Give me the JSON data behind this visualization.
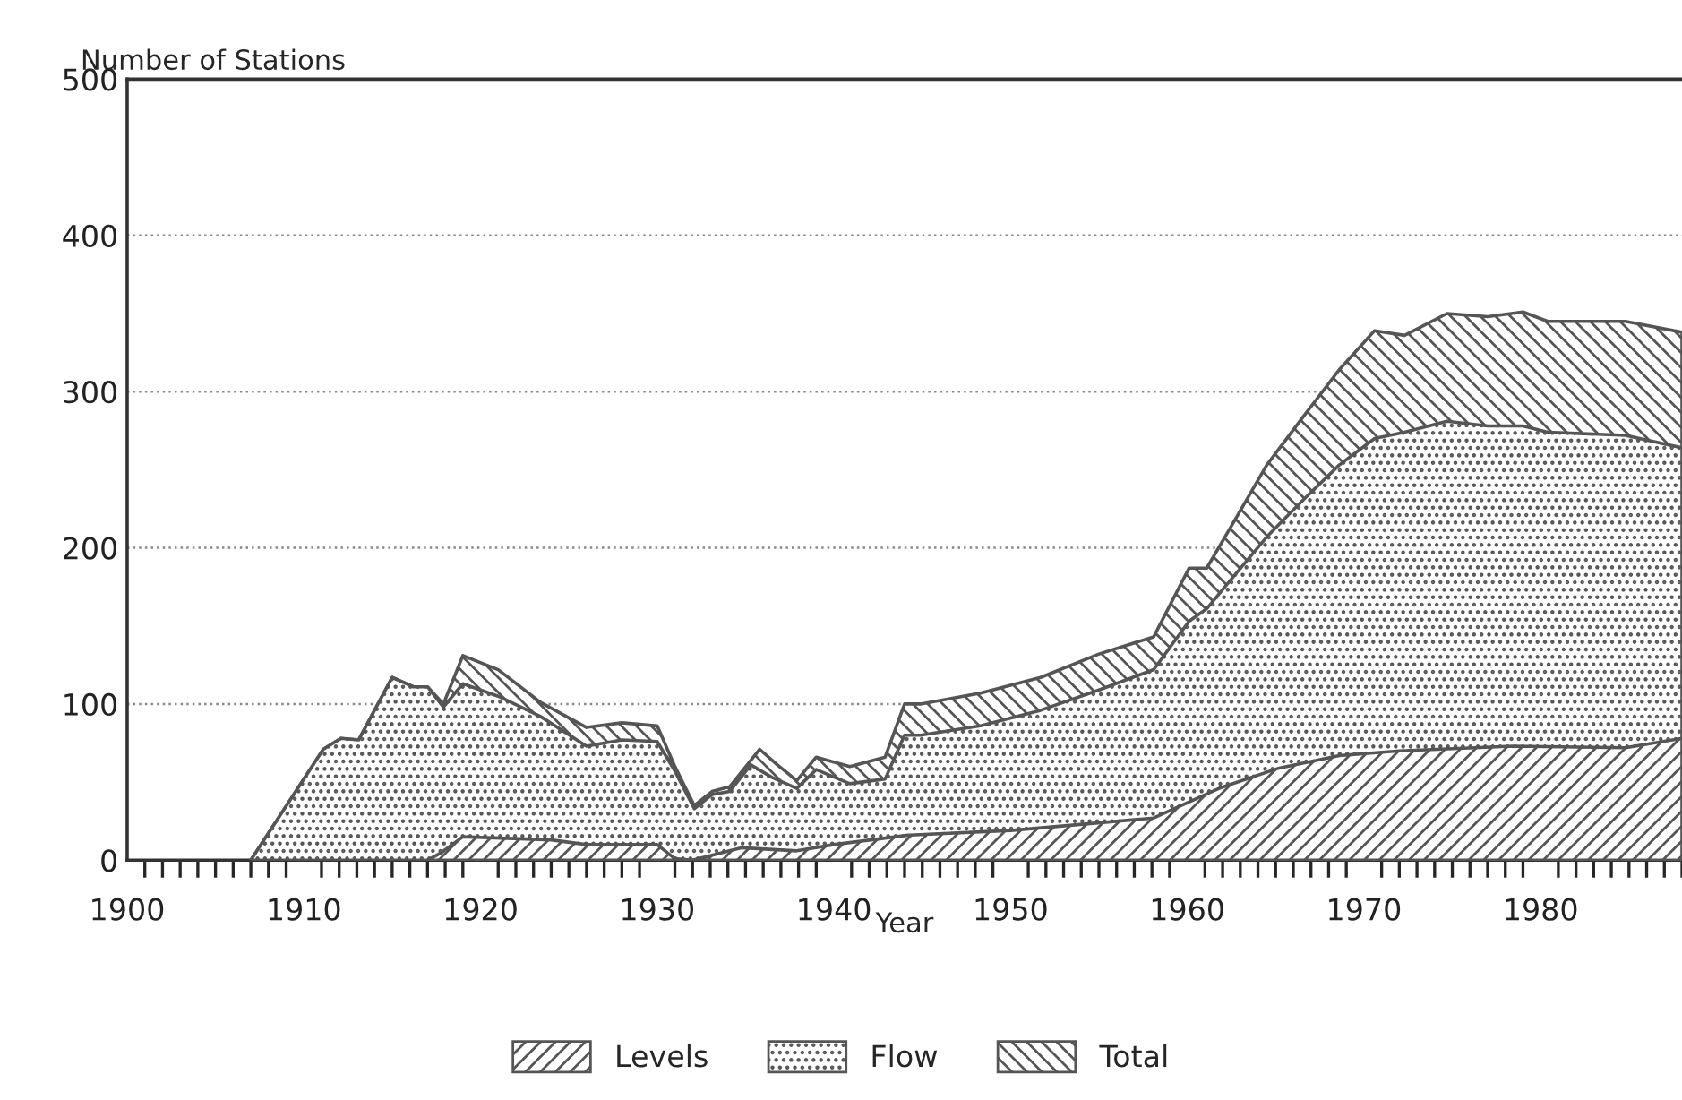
{
  "chart_data": {
    "type": "area",
    "ylabel": "Number of Stations",
    "xlabel": "Year",
    "xlim": [
      1900,
      1988
    ],
    "xticks": [
      1900,
      1910,
      1920,
      1930,
      1940,
      1950,
      1960,
      1970,
      1980
    ],
    "ylim": [
      0,
      500
    ],
    "yticks": [
      0,
      100,
      200,
      300,
      400,
      500
    ],
    "grid": "y",
    "legend": "bottom",
    "series": [
      {
        "name": "Levels",
        "color": "#555555",
        "x": [
          1917,
          1917.8,
          1919,
          1924,
          1926,
          1930,
          1931,
          1932,
          1934.8,
          1937.9,
          1940,
          1944.2,
          1950,
          1958.1,
          1961.8,
          1965.2,
          1968.6,
          1972,
          1978.4,
          1984.8,
          1988
        ],
        "values": [
          0,
          5,
          15,
          13,
          10,
          10,
          1,
          0,
          8,
          6,
          10,
          16,
          19,
          27,
          46,
          59,
          67,
          70,
          73,
          72,
          78
        ]
      },
      {
        "name": "Flow",
        "color": "#555555",
        "x": [
          1907,
          1911.1,
          1912.1,
          1913.1,
          1915,
          1916.2,
          1917,
          1917.9,
          1919,
          1921,
          1923.4,
          1926,
          1928,
          1930,
          1931,
          1932.1,
          1933.1,
          1934.1,
          1935.3,
          1936.5,
          1937.9,
          1939,
          1940.9,
          1942.9,
          1944,
          1944.9,
          1948.3,
          1951.7,
          1955,
          1958.1,
          1960.1,
          1961.1,
          1962.5,
          1964.5,
          1966.5,
          1968.6,
          1970.6,
          1972.3,
          1974.7,
          1977,
          1979,
          1980.4,
          1984.8,
          1988
        ],
        "values": [
          0,
          71,
          78,
          77,
          117,
          111,
          111,
          98,
          113,
          105,
          92,
          73,
          77,
          76,
          57,
          33,
          42,
          44,
          61,
          53,
          46,
          58,
          49,
          52,
          80,
          80,
          86,
          96,
          109,
          122,
          153,
          161,
          180,
          207,
          230,
          253,
          270,
          274,
          281,
          278,
          278,
          274,
          272,
          264
        ]
      },
      {
        "name": "Total",
        "color": "#555555",
        "x": [
          1907,
          1911.1,
          1912.1,
          1913.1,
          1915,
          1916.2,
          1917,
          1917.9,
          1919,
          1921,
          1923.4,
          1926,
          1928,
          1930,
          1931,
          1932.1,
          1933.1,
          1934.1,
          1935.8,
          1936.8,
          1937.9,
          1939,
          1940.9,
          1942.9,
          1944,
          1944.9,
          1948.3,
          1951.7,
          1955,
          1958.1,
          1960.1,
          1961.1,
          1962.5,
          1964.5,
          1966.5,
          1968.6,
          1970.6,
          1972.3,
          1974.7,
          1977,
          1979,
          1980.4,
          1984.8,
          1988
        ],
        "values": [
          0,
          71,
          78,
          77,
          117,
          111,
          111,
          100,
          131,
          122,
          101,
          85,
          88,
          86,
          60,
          35,
          44,
          47,
          71,
          61,
          51,
          66,
          60,
          66,
          100,
          100,
          107,
          117,
          132,
          143,
          187,
          187,
          214,
          253,
          283,
          314,
          339,
          336,
          350,
          348,
          351,
          345,
          345,
          338
        ]
      }
    ]
  }
}
